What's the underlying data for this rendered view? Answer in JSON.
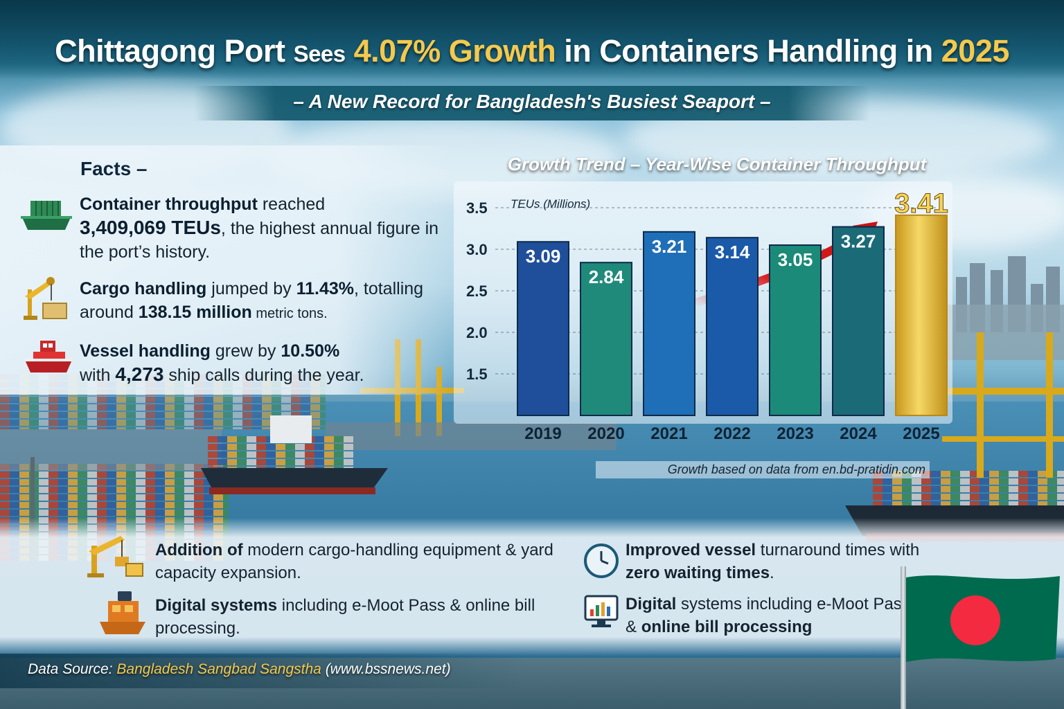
{
  "header": {
    "title_part1": "Chittagong Port",
    "title_part2": "Sees",
    "title_part3": "4.07% Growth",
    "title_part4": "in Containers Handling in",
    "title_part5": "2025",
    "subtitle": "– A New Record for Bangladesh's Busiest Seaport –"
  },
  "facts": {
    "heading": "Facts –",
    "items": [
      {
        "icon": "cargo-ship-icon",
        "bold1": "Container throughput",
        "text1": " reached",
        "bold2": "3,409,069 TEUs",
        "text2": ", the highest annual figure in the port’s history."
      },
      {
        "icon": "crane-icon",
        "bold1": "Cargo handling",
        "text1": " jumped by ",
        "bold2": "11.43%",
        "text2": ", totalling around ",
        "bold3": "138.15 million",
        "text3": " metric tons."
      },
      {
        "icon": "vessel-icon",
        "bold1": "Vessel handling",
        "text1": " grew by ",
        "bold2": "10.50%",
        "text2": " with ",
        "bold3": "4,273",
        "text3": " ship calls during the year."
      }
    ]
  },
  "chart_data": {
    "type": "bar",
    "title": "Growth Trend – Year-Wise Container Throughput",
    "ylabel": "TEUs (Millions)",
    "categories": [
      "2019",
      "2020",
      "2021",
      "2022",
      "2023",
      "2024",
      "2025"
    ],
    "values": [
      3.09,
      2.84,
      3.21,
      3.14,
      3.05,
      3.27,
      3.41
    ],
    "value_labels": [
      "3.09",
      "2.84",
      "3.21",
      "3.14",
      "3.05",
      "3.27",
      "3.41"
    ],
    "yticks": [
      "1.5",
      "2.0",
      "2.5",
      "3.0",
      "3.5"
    ],
    "ylim": [
      1.0,
      3.5
    ],
    "grid": true,
    "colors": [
      "#1f4f9a",
      "#1f8a7a",
      "#1f6fb8",
      "#1a5aa8",
      "#1b8a78",
      "#1b6a78",
      "#e0b83a"
    ],
    "note": "Growth based on data from en.bd-pratidin.com"
  },
  "notes": [
    {
      "icon": "crane-equipment-icon",
      "bold1": "Addition of",
      "text1": " modern cargo-handling equipment & yard capacity expansion."
    },
    {
      "icon": "clock-icon",
      "bold1": "Improved vessel",
      "text1": " turnaround times with ",
      "bold2": "zero waiting times",
      "text2": "."
    },
    {
      "icon": "digital-freight-icon",
      "bold1": "Digital systems",
      "text1": " including e-Moot Pass & online bill processing."
    },
    {
      "icon": "monitor-chart-icon",
      "bold1": "Digital",
      "text1": " systems including e-Moot Pass & ",
      "bold2": "online bill processing"
    }
  ],
  "source": {
    "label": "Data Source:",
    "name": "Bangladesh Sangbad Sangstha",
    "url": "(www.bssnews.net)"
  },
  "flag": {
    "field": "#006a4e",
    "disc": "#f42a41"
  }
}
